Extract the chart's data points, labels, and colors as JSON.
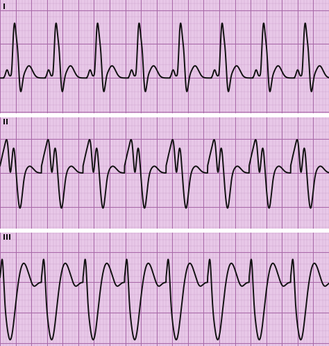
{
  "bg_color_light": "#e8c8e8",
  "bg_color_grid": "#d4a8d4",
  "grid_minor_color": "#c898c8",
  "grid_major_color": "#a868a8",
  "ecg_color": "#111111",
  "ecg_linewidth": 1.4,
  "label_I": "I",
  "label_II": "II",
  "label_III": "III",
  "fig_width": 4.74,
  "fig_height": 4.98,
  "dpi": 100,
  "separator_color": "#d0d0d0",
  "outer_bg": "#c8c8c8"
}
